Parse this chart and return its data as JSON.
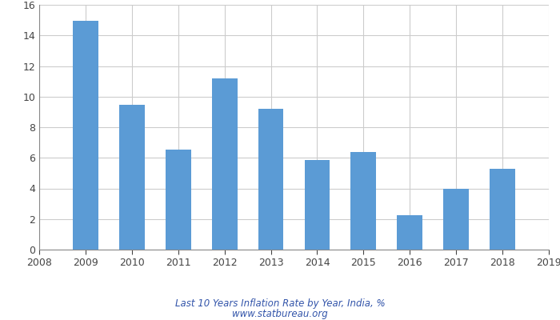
{
  "years": [
    2009,
    2010,
    2011,
    2012,
    2013,
    2014,
    2015,
    2016,
    2017,
    2018
  ],
  "values": [
    14.97,
    9.47,
    6.52,
    11.17,
    9.2,
    5.88,
    6.4,
    2.27,
    3.97,
    5.28
  ],
  "bar_color": "#5b9bd5",
  "xlim": [
    2008,
    2019
  ],
  "ylim": [
    0,
    16
  ],
  "yticks": [
    0,
    2,
    4,
    6,
    8,
    10,
    12,
    14,
    16
  ],
  "xticks": [
    2008,
    2009,
    2010,
    2011,
    2012,
    2013,
    2014,
    2015,
    2016,
    2017,
    2018,
    2019
  ],
  "grid_color": "#cccccc",
  "label1": "Last 10 Years Inflation Rate by Year, India, %",
  "label2": "www.statbureau.org",
  "label_color": "#3355aa",
  "bg_color": "#ffffff",
  "bar_width": 0.55
}
